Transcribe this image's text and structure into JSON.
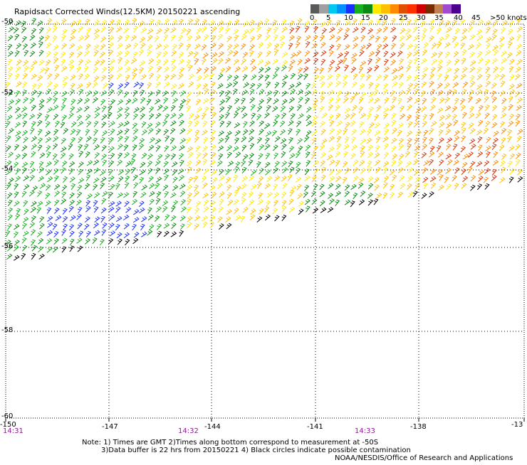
{
  "title": "Rapidsact Corrected Winds(12.5KM) 20150221 ascending",
  "legend": {
    "swatches": [
      "#5a5a5a",
      "#a0a0a0",
      "#00c8f0",
      "#0090ff",
      "#1a2fff",
      "#18b020",
      "#0a8a10",
      "#ffe800",
      "#ffc000",
      "#ff8a00",
      "#e05000",
      "#ff3000",
      "#d00000",
      "#7a2a00",
      "#c08050",
      "#a04ad0",
      "#4a008a"
    ],
    "labels": [
      "0",
      "5",
      "10",
      "15",
      "20",
      "25",
      "30",
      "35",
      "40",
      "45",
      ">50 knots"
    ]
  },
  "axes": {
    "lat_labels": [
      "-50",
      "-52",
      "-54",
      "-56",
      "-58",
      "-60"
    ],
    "lon_labels": [
      "-150",
      "-147",
      "-144",
      "-141",
      "-138",
      "-13"
    ]
  },
  "times": [
    "14:31",
    "14:32",
    "14:33"
  ],
  "notes": {
    "line1": "Note: 1) Times are GMT 2)Times along bottom correspond to measurement at -50S",
    "line2": "3)Data buffer is 22 hrs from 20150221 4) Black circles indicate possible contamination",
    "line3": "NOAA/NESDIS/Office of Research and Applications"
  },
  "wind_field": {
    "colors": {
      "blue": "#1a2fff",
      "dkgreen": "#0a8a10",
      "green": "#18b020",
      "yellow": "#ffe800",
      "gold": "#ffc000",
      "orange": "#ff8a00",
      "red": "#e03000",
      "black": "#000000"
    }
  }
}
